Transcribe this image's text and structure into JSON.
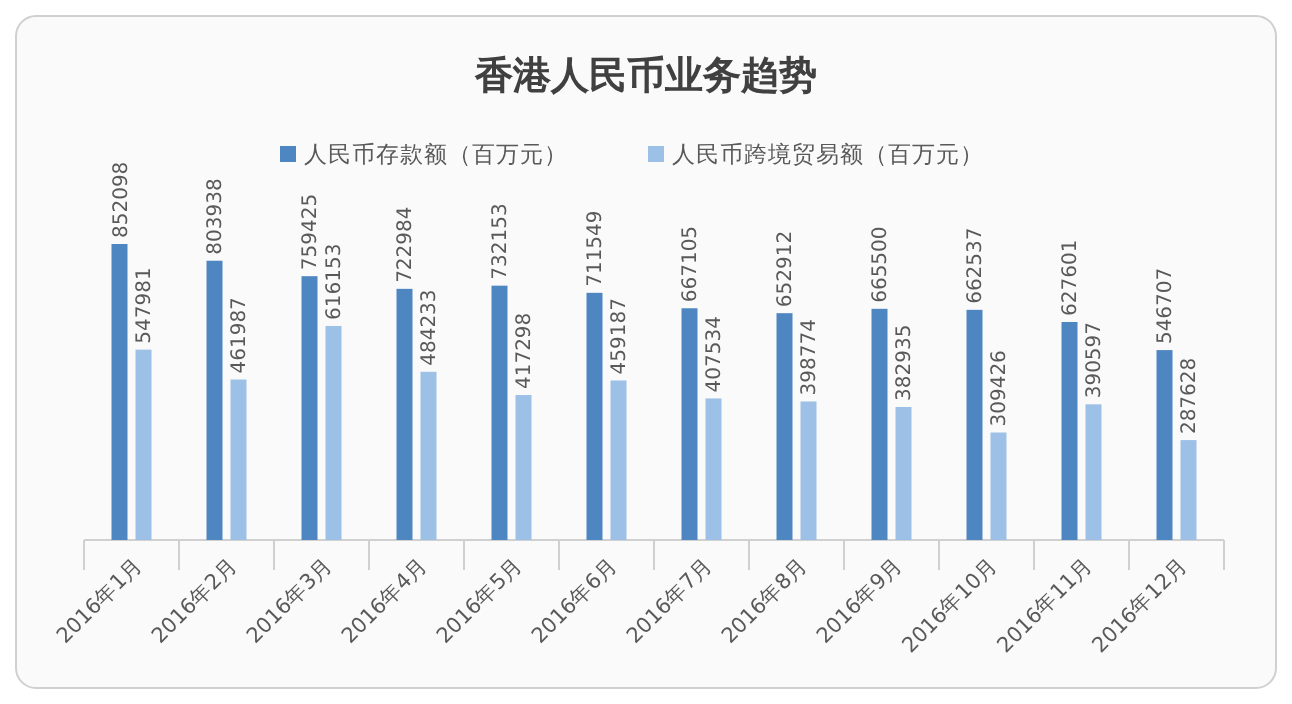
{
  "chart_data": {
    "type": "bar",
    "title": "香港人民币业务趋势",
    "categories": [
      "2016年1月",
      "2016年2月",
      "2016年3月",
      "2016年4月",
      "2016年5月",
      "2016年6月",
      "2016年7月",
      "2016年8月",
      "2016年9月",
      "2016年10月",
      "2016年11月",
      "2016年12月"
    ],
    "series": [
      {
        "name": "人民币存款额（百万元）",
        "color": "#4e86c2",
        "values": [
          852098,
          803938,
          759425,
          722984,
          732153,
          711549,
          667105,
          652912,
          665500,
          662537,
          627601,
          546707
        ]
      },
      {
        "name": "人民币跨境贸易额（百万元）",
        "color": "#9dc0e6",
        "values": [
          547981,
          461987,
          616153,
          484233,
          417298,
          459187,
          407534,
          398774,
          382935,
          309426,
          390597,
          287628
        ]
      }
    ],
    "data_labels": true,
    "legend": "top"
  }
}
